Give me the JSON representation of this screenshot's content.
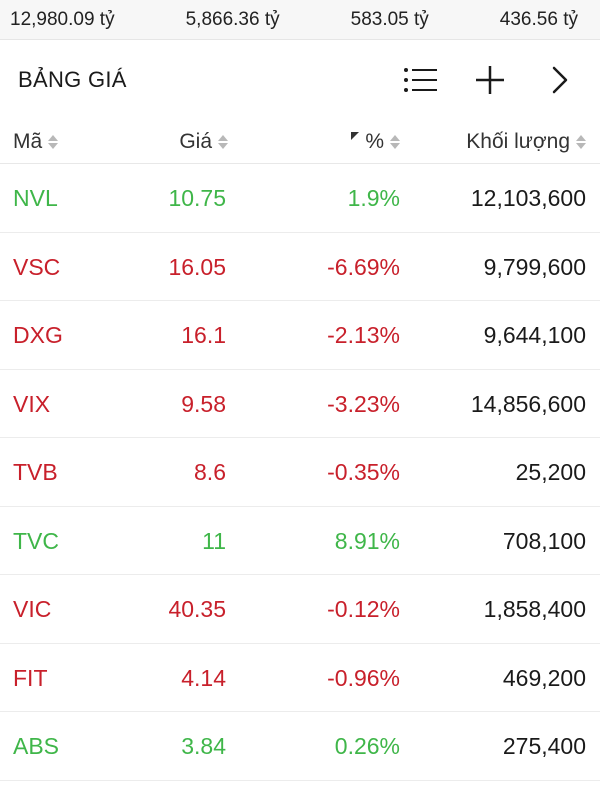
{
  "colors": {
    "up": "#3fb649",
    "down": "#c8202b"
  },
  "summary": [
    "12,980.09 tỷ",
    "5,866.36 tỷ",
    "583.05 tỷ",
    "436.56 tỷ"
  ],
  "header": {
    "title": "BẢNG GIÁ",
    "icons": [
      "list-icon",
      "plus-icon",
      "chevron-right-icon"
    ]
  },
  "columns": {
    "symbol": "Mã",
    "price": "Giá",
    "percent": "%",
    "volume": "Khối lượng"
  },
  "rows": [
    {
      "symbol": "NVL",
      "price": "10.75",
      "change": "1.9%",
      "volume": "12,103,600",
      "dir": "up"
    },
    {
      "symbol": "VSC",
      "price": "16.05",
      "change": "-6.69%",
      "volume": "9,799,600",
      "dir": "down"
    },
    {
      "symbol": "DXG",
      "price": "16.1",
      "change": "-2.13%",
      "volume": "9,644,100",
      "dir": "down"
    },
    {
      "symbol": "VIX",
      "price": "9.58",
      "change": "-3.23%",
      "volume": "14,856,600",
      "dir": "down"
    },
    {
      "symbol": "TVB",
      "price": "8.6",
      "change": "-0.35%",
      "volume": "25,200",
      "dir": "down"
    },
    {
      "symbol": "TVC",
      "price": "11",
      "change": "8.91%",
      "volume": "708,100",
      "dir": "up"
    },
    {
      "symbol": "VIC",
      "price": "40.35",
      "change": "-0.12%",
      "volume": "1,858,400",
      "dir": "down"
    },
    {
      "symbol": "FIT",
      "price": "4.14",
      "change": "-0.96%",
      "volume": "469,200",
      "dir": "down"
    },
    {
      "symbol": "ABS",
      "price": "3.84",
      "change": "0.26%",
      "volume": "275,400",
      "dir": "up"
    }
  ]
}
